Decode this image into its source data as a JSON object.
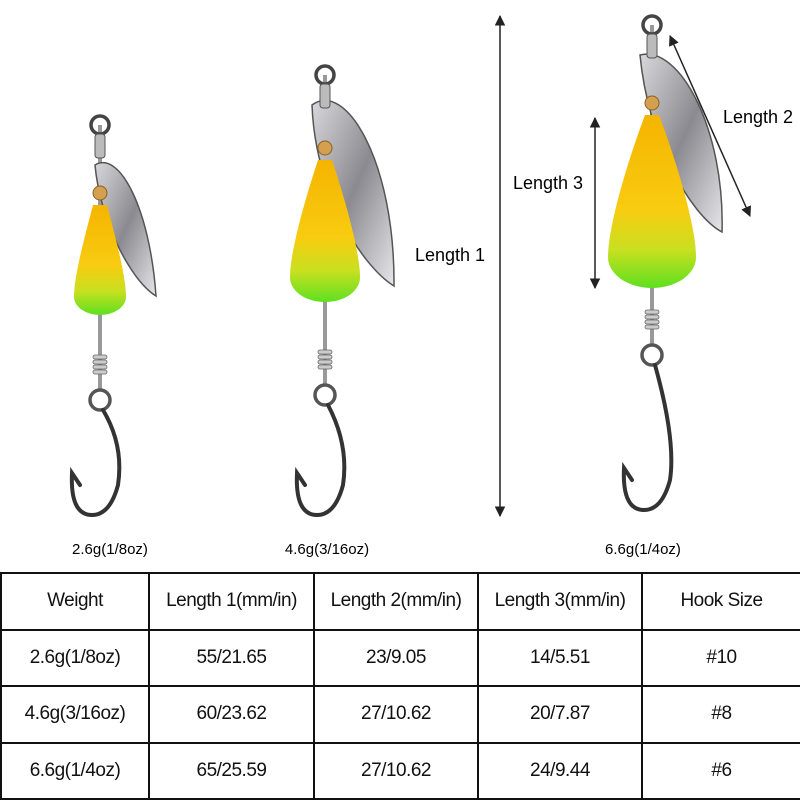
{
  "dimension_labels": [
    "Length 1",
    "Length 2",
    "Length 3"
  ],
  "captions": [
    "2.6g(1/8oz)",
    "4.6g(3/16oz)",
    "6.6g(1/4oz)"
  ],
  "table": {
    "header": [
      "Weight",
      "Length 1(mm/in)",
      "Length 2(mm/in)",
      "Length 3(mm/in)",
      "Hook Size"
    ],
    "rows": [
      [
        "2.6g(1/8oz)",
        "55/21.65",
        "23/9.05",
        "14/5.51",
        "#10"
      ],
      [
        "4.6g(3/16oz)",
        "60/23.62",
        "27/10.62",
        "20/7.87",
        "#8"
      ],
      [
        "6.6g(1/4oz)",
        "65/25.59",
        "27/10.62",
        "24/9.44",
        "#6"
      ]
    ]
  }
}
